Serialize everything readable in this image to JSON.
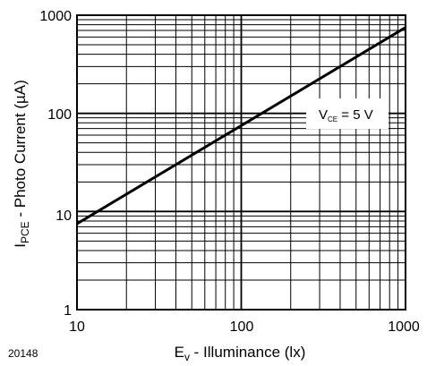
{
  "chart_data": {
    "type": "line",
    "x_scale": "log",
    "y_scale": "log",
    "xlim": [
      10,
      1000
    ],
    "ylim": [
      1,
      1000
    ],
    "x_ticks": [
      "10",
      "100",
      "1000"
    ],
    "y_ticks": [
      "1",
      "10",
      "100",
      "1000"
    ],
    "grid": true,
    "xlabel": {
      "main": "E",
      "sub": "v",
      "rest": " - Illuminance (lx)"
    },
    "ylabel": {
      "main": "I",
      "sub": "PCE",
      "rest": " - Photo Current (µA)"
    },
    "series": [
      {
        "x": [
          10,
          1000
        ],
        "y": [
          7.5,
          750
        ]
      }
    ],
    "annotation": {
      "main": "V",
      "sub": "CE",
      "rest": " = 5 V"
    },
    "figure_id": "20148"
  }
}
